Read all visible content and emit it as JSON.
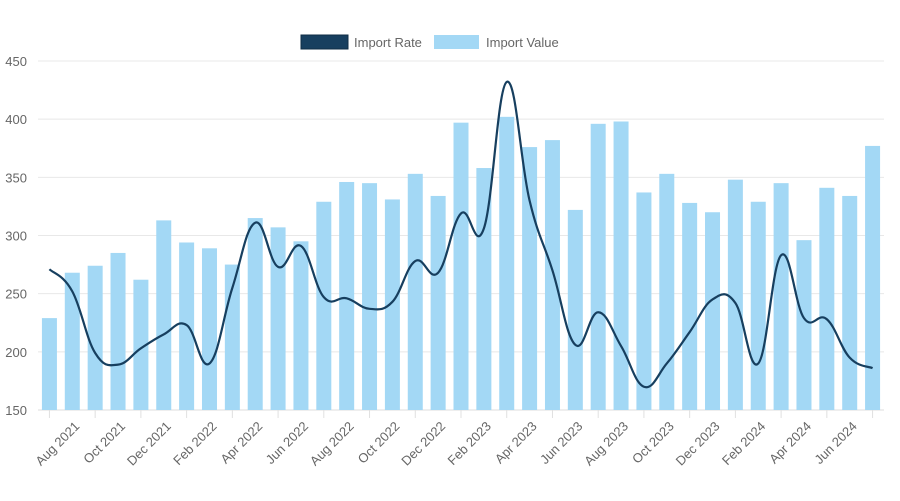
{
  "chart_data": {
    "type": "bar",
    "title": "",
    "xlabel": "",
    "ylabel": "",
    "ylim": [
      150,
      450
    ],
    "yticks": [
      "150",
      "200",
      "250",
      "300",
      "350",
      "400",
      "450"
    ],
    "grid": true,
    "legend_position": "top",
    "categories": [
      "Jul 2021",
      "Aug 2021",
      "Sep 2021",
      "Oct 2021",
      "Nov 2021",
      "Dec 2021",
      "Jan 2022",
      "Feb 2022",
      "Mar 2022",
      "Apr 2022",
      "May 2022",
      "Jun 2022",
      "Jul 2022",
      "Aug 2022",
      "Sep 2022",
      "Oct 2022",
      "Nov 2022",
      "Dec 2022",
      "Jan 2023",
      "Feb 2023",
      "Mar 2023",
      "Apr 2023",
      "May 2023",
      "Jun 2023",
      "Jul 2023",
      "Aug 2023",
      "Sep 2023",
      "Oct 2023",
      "Nov 2023",
      "Dec 2023",
      "Jan 2024",
      "Feb 2024",
      "Mar 2024",
      "Apr 2024",
      "May 2024",
      "Jun 2024",
      "Jul 2024"
    ],
    "xtick_labels": [
      "Aug 2021",
      "Oct 2021",
      "Dec 2021",
      "Feb 2022",
      "Apr 2022",
      "Jun 2022",
      "Aug 2022",
      "Oct 2022",
      "Dec 2022",
      "Feb 2023",
      "Apr 2023",
      "Jun 2023",
      "Aug 2023",
      "Oct 2023",
      "Dec 2023",
      "Feb 2024",
      "Apr 2024",
      "Jun 2024"
    ],
    "series": [
      {
        "name": "Import Rate",
        "type": "line",
        "color": "#173f5f",
        "values": [
          271,
          252,
          199,
          189,
          203,
          215,
          223,
          190,
          255,
          311,
          273,
          291,
          247,
          246,
          237,
          243,
          278,
          268,
          319,
          306,
          432,
          330,
          270,
          206,
          234,
          205,
          170,
          190,
          217,
          245,
          242,
          190,
          283,
          229,
          228,
          195,
          186
        ]
      },
      {
        "name": "Import Value",
        "type": "bar",
        "color": "#a3d8f5",
        "values": [
          229,
          268,
          274,
          285,
          262,
          313,
          294,
          289,
          275,
          315,
          307,
          295,
          329,
          346,
          345,
          331,
          353,
          334,
          397,
          358,
          402,
          376,
          382,
          322,
          396,
          398,
          337,
          353,
          328,
          320,
          348,
          329,
          345,
          296,
          341,
          334,
          377
        ]
      }
    ]
  }
}
